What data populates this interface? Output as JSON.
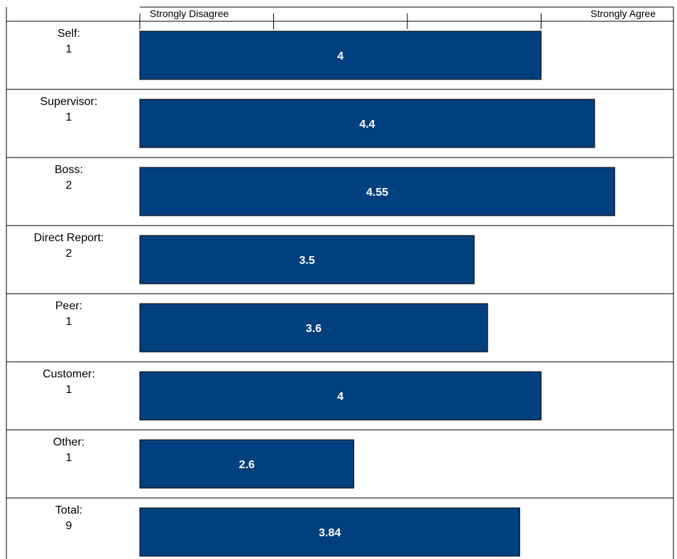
{
  "chart_data": {
    "type": "bar",
    "orientation": "horizontal",
    "scale": {
      "min_label": "Strongly Disagree",
      "max_label": "Strongly Agree",
      "xlim": [
        1,
        5
      ],
      "ticks": [
        1,
        2,
        3,
        4
      ]
    },
    "rows": [
      {
        "label": "Self:",
        "count": "1",
        "value": 4,
        "value_label": "4"
      },
      {
        "label": "Supervisor:",
        "count": "1",
        "value": 4.4,
        "value_label": "4.4"
      },
      {
        "label": "Boss:",
        "count": "2",
        "value": 4.55,
        "value_label": "4.55"
      },
      {
        "label": "Direct Report:",
        "count": "2",
        "value": 3.5,
        "value_label": "3.5"
      },
      {
        "label": "Peer:",
        "count": "1",
        "value": 3.6,
        "value_label": "3.6"
      },
      {
        "label": "Customer:",
        "count": "1",
        "value": 4,
        "value_label": "4"
      },
      {
        "label": "Other:",
        "count": "1",
        "value": 2.6,
        "value_label": "2.6"
      },
      {
        "label": "Total:",
        "count": "9",
        "value": 3.84,
        "value_label": "3.84"
      }
    ],
    "bar_color": "#023f7f",
    "grid": false,
    "legend": "none"
  }
}
